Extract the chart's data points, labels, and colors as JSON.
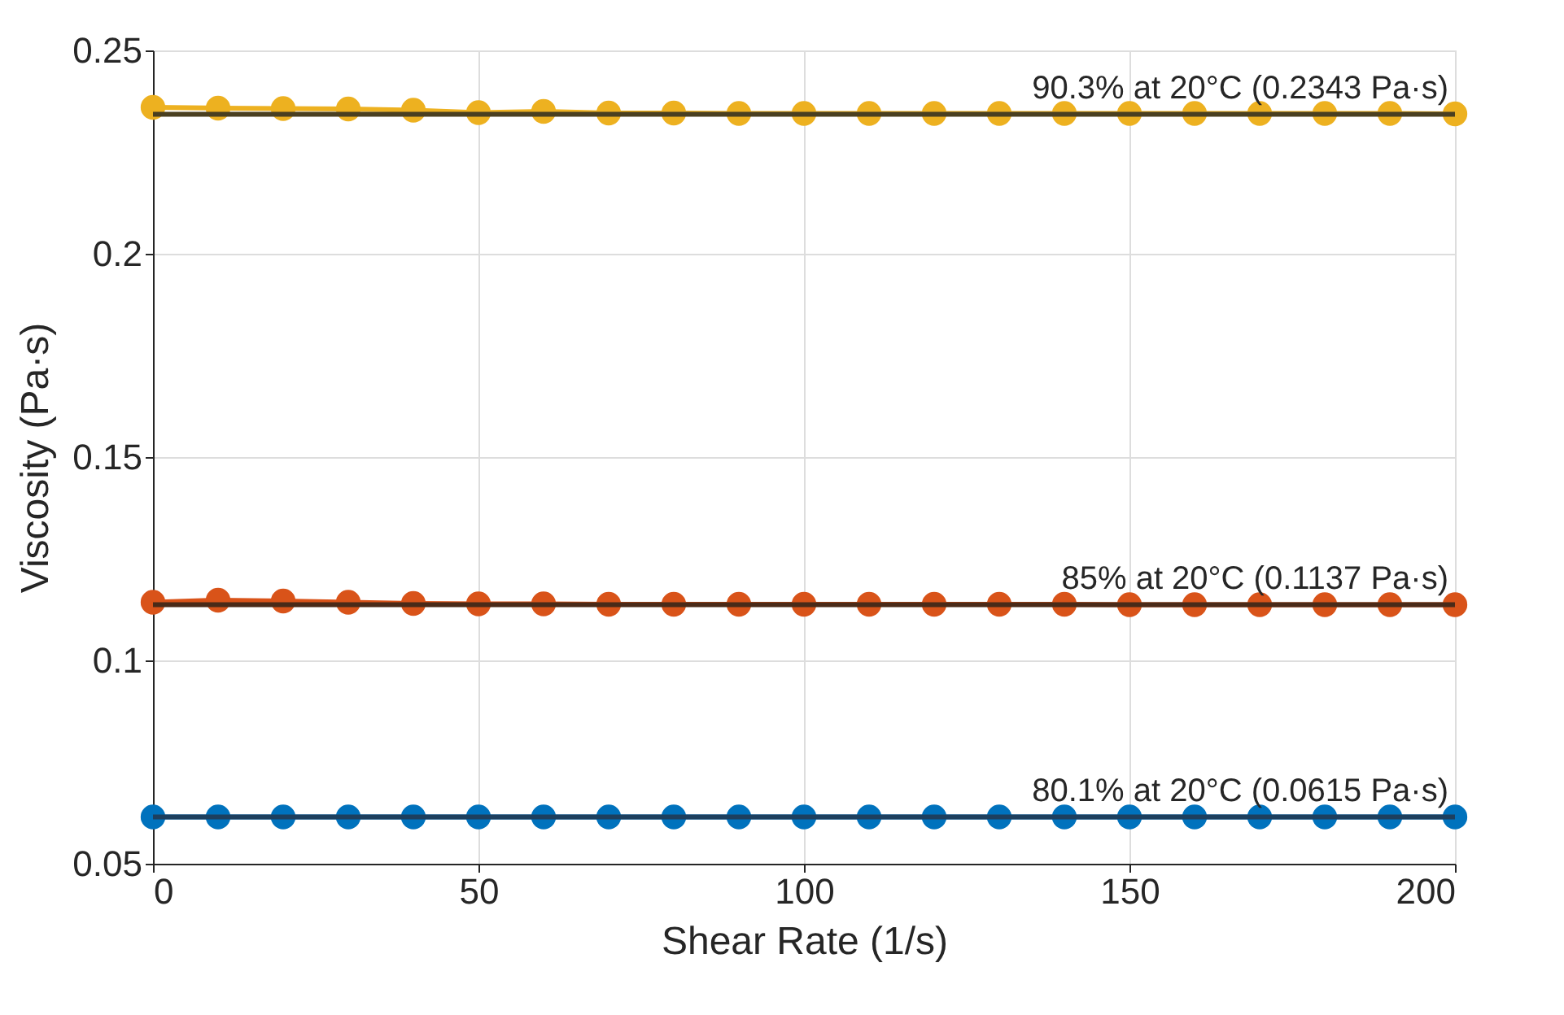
{
  "chart_data": {
    "type": "line",
    "xlabel": "Shear Rate (1/s)",
    "ylabel": "Viscosity (Pa·s)",
    "x": [
      0,
      10,
      20,
      30,
      40,
      50,
      60,
      70,
      80,
      90,
      100,
      110,
      120,
      130,
      140,
      150,
      160,
      170,
      180,
      190,
      200
    ],
    "series": [
      {
        "color": "#edb120",
        "values": [
          0.236,
          0.2358,
          0.2357,
          0.2356,
          0.2353,
          0.2347,
          0.235,
          0.2346,
          0.2346,
          0.2345,
          0.2345,
          0.2345,
          0.2345,
          0.2345,
          0.2345,
          0.2345,
          0.2345,
          0.2345,
          0.2345,
          0.2345,
          0.2344
        ]
      },
      {
        "color": "#d95319",
        "values": [
          0.1143,
          0.1148,
          0.1146,
          0.1143,
          0.114,
          0.1139,
          0.1139,
          0.1138,
          0.1138,
          0.1138,
          0.1138,
          0.1138,
          0.1138,
          0.1138,
          0.1138,
          0.1137,
          0.1137,
          0.1137,
          0.1137,
          0.1137,
          0.1137
        ]
      },
      {
        "color": "#0072bd",
        "values": [
          0.0615,
          0.0615,
          0.0615,
          0.0615,
          0.0615,
          0.0615,
          0.0615,
          0.0615,
          0.0615,
          0.0615,
          0.0615,
          0.0615,
          0.0615,
          0.0615,
          0.0615,
          0.0615,
          0.0615,
          0.0615,
          0.0615,
          0.0615,
          0.0615
        ]
      }
    ],
    "ref_lines": [
      {
        "axis": "y",
        "value": 0.2343,
        "label": "90.3% at 20°C (0.2343 Pa·s)",
        "color": "#4a3f20"
      },
      {
        "axis": "y",
        "value": 0.1137,
        "label": "85% at 20°C (0.1137 Pa·s)",
        "color": "#4a2a18"
      },
      {
        "axis": "y",
        "value": 0.0615,
        "label": "80.1% at 20°C (0.0615 Pa·s)",
        "color": "#1d3f5e"
      }
    ],
    "xlim": [
      0,
      200
    ],
    "xticks": [
      0,
      50,
      100,
      150,
      200
    ],
    "ylim": [
      0.05,
      0.25
    ],
    "yticks": [
      0.05,
      0.1,
      0.15,
      0.2,
      0.25
    ],
    "grid": true,
    "marker": "circle",
    "line_style": "solid"
  }
}
